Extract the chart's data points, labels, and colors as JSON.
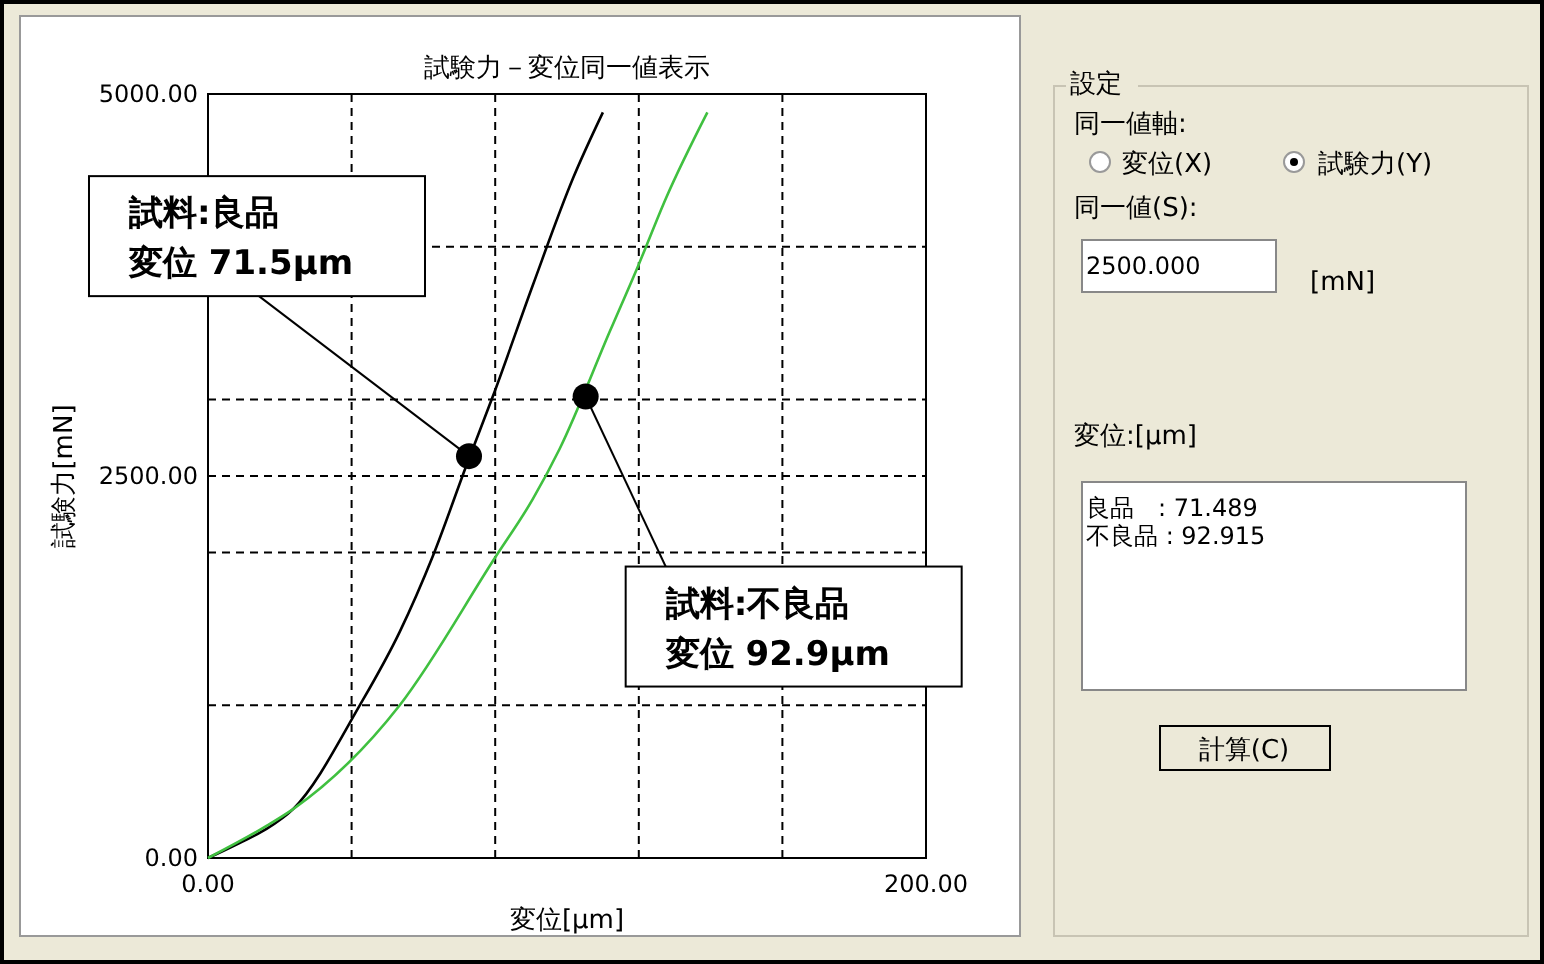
{
  "chart_data": [
    {
      "type": "line",
      "title": "試験力－変位同一値表示",
      "xlabel": "変位[μm]",
      "ylabel": "試験力[mN]",
      "xlim": [
        0,
        200
      ],
      "ylim": [
        0,
        5000
      ],
      "xticks": [
        {
          "value": 0,
          "label": "0.00"
        },
        {
          "value": 40,
          "label": null
        },
        {
          "value": 80,
          "label": null
        },
        {
          "value": 120,
          "label": null
        },
        {
          "value": 160,
          "label": null
        },
        {
          "value": 200,
          "label": "200.00"
        }
      ],
      "yticks": [
        {
          "value": 0,
          "label": "0.00"
        },
        {
          "value": 1000,
          "label": null
        },
        {
          "value": 2000,
          "label": null
        },
        {
          "value": 2500,
          "label": "2500.00"
        },
        {
          "value": 3000,
          "label": null
        },
        {
          "value": 4000,
          "label": null
        },
        {
          "value": 5000,
          "label": "5000.00"
        }
      ],
      "grid": true,
      "line_style": "solid",
      "series": [
        {
          "type": "line",
          "color": "#000000",
          "x": [
            0,
            8.9,
            16.3,
            23.7,
            42.3,
            53.4,
            62.7,
            72,
            79.8,
            90.5,
            101.7,
            110
          ],
          "values": [
            0,
            100,
            190,
            320,
            1000,
            1480,
            1980,
            2570,
            3050,
            3750,
            4450,
            4880
          ]
        },
        {
          "type": "line",
          "color": "#40c040",
          "x": [
            0,
            16.3,
            23.7,
            53.4,
            79.8,
            90.5,
            98,
            112,
            119.9,
            127.6,
            139.1
          ],
          "values": [
            0,
            210,
            320,
            1000,
            1960,
            2350,
            2680,
            3450,
            3880,
            4320,
            4880
          ]
        },
        {
          "type": "scatter",
          "color": "#000000",
          "marker": "circle",
          "x": [
            72.7,
            105.2
          ],
          "values": [
            2630,
            3020
          ]
        }
      ],
      "annotations": [
        "試料:良品",
        {
          "text": "変位 71.5μm",
          "x": 72.7,
          "y": 2630
        },
        {
          "text": "試料:不良品",
          "x": 105.2,
          "y": 3020
        },
        "変位 92.9μm"
      ]
    },
    {
      "type": "other",
      "title": "設定",
      "annotations": [
        "同一値軸:",
        "変位(X)",
        "試験力(Y)",
        "同一値(S):",
        "2500.000",
        "[mN]",
        "変位:[μm]",
        "良品　: 71.489",
        "不良品 : 92.915",
        "計算(C)"
      ]
    }
  ]
}
